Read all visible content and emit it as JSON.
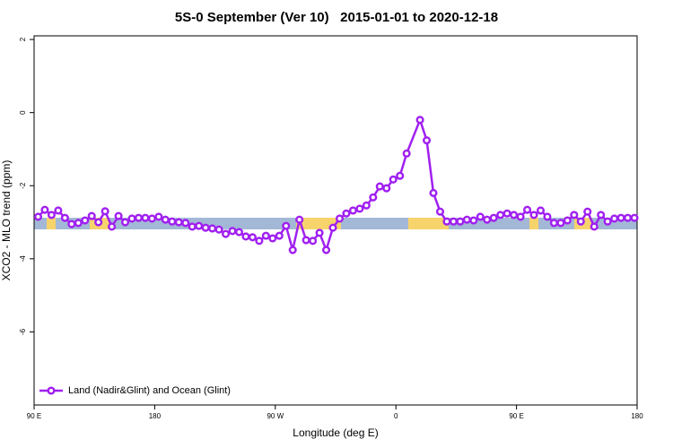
{
  "chart_data": {
    "type": "line",
    "title": "5S-0 September (Ver 10)   2015-01-01 to 2020-12-18",
    "xlabel": "Longitude (deg E)",
    "ylabel": "XCO2 - MLO trend (ppm)",
    "xlim": [
      90,
      540
    ],
    "ylim": [
      -8,
      2.1
    ],
    "xticks": [
      {
        "value": 90,
        "label": "90 E"
      },
      180,
      {
        "value": 270,
        "label": "90 W"
      },
      {
        "value": 360,
        "label": "0"
      },
      {
        "value": 450,
        "label": "90 E"
      },
      {
        "value": 540,
        "label": "180"
      }
    ],
    "yticks": [
      -6,
      -4,
      -2,
      0,
      2
    ],
    "legend": "bottom-left",
    "x": [
      93,
      98,
      103,
      108,
      113,
      118,
      123,
      128,
      133,
      138,
      143,
      148,
      153,
      158,
      163,
      168,
      173,
      178,
      183,
      188,
      193,
      198,
      203,
      208,
      213,
      218,
      223,
      228,
      233,
      238,
      243,
      248,
      253,
      258,
      263,
      268,
      273,
      278,
      283,
      288,
      293,
      298,
      303,
      308,
      313,
      318,
      323,
      328,
      333,
      338,
      343,
      348,
      353,
      358,
      363,
      368,
      378,
      383,
      388,
      393,
      398,
      403,
      408,
      413,
      418,
      423,
      428,
      433,
      438,
      443,
      448,
      453,
      458,
      463,
      468,
      473,
      478,
      483,
      488,
      493,
      498,
      503,
      508,
      513,
      518,
      523,
      528,
      533,
      538
    ],
    "series": [
      {
        "name": "Land (Nadir&Glint) and Ocean (Glint)",
        "color": "#a020f0",
        "values": [
          -2.85,
          -2.66,
          -2.8,
          -2.68,
          -2.88,
          -3.05,
          -3.02,
          -2.95,
          -2.83,
          -3.0,
          -2.7,
          -3.12,
          -2.83,
          -3.0,
          -2.9,
          -2.88,
          -2.88,
          -2.9,
          -2.85,
          -2.93,
          -2.98,
          -3.0,
          -3.02,
          -3.12,
          -3.1,
          -3.15,
          -3.17,
          -3.2,
          -3.32,
          -3.24,
          -3.27,
          -3.39,
          -3.41,
          -3.51,
          -3.37,
          -3.44,
          -3.37,
          -3.1,
          -3.76,
          -2.93,
          -3.49,
          -3.51,
          -3.29,
          -3.76,
          -3.15,
          -2.9,
          -2.76,
          -2.68,
          -2.63,
          -2.54,
          -2.32,
          -2.02,
          -2.07,
          -1.83,
          -1.73,
          -1.12,
          -0.2,
          -0.76,
          -2.2,
          -2.71,
          -2.98,
          -2.98,
          -2.98,
          -2.93,
          -2.95,
          -2.85,
          -2.93,
          -2.88,
          -2.8,
          -2.76,
          -2.8,
          -2.85,
          -2.66,
          -2.8,
          -2.68,
          -2.85,
          -3.02,
          -3.02,
          -2.95,
          -2.8,
          -2.98,
          -2.71,
          -3.12,
          -2.8,
          -2.98,
          -2.9,
          -2.88,
          -2.88,
          -2.88
        ]
      }
    ]
  }
}
